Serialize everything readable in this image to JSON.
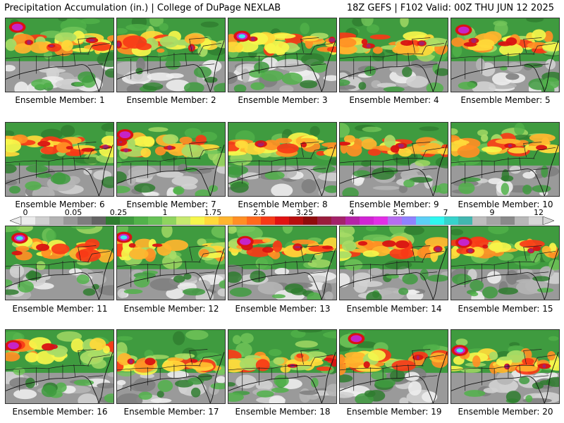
{
  "header": {
    "left": "Precipitation Accumulation (in.) | College of DuPage NEXLAB",
    "right": "18Z GEFS | F102 Valid: 00Z THU JUN 12 2025"
  },
  "colors": {
    "scale": [
      "#ececec",
      "#cfcfcf",
      "#b3b3b3",
      "#989898",
      "#7e7e7e",
      "#646464",
      "#2f7d2f",
      "#3f9b3f",
      "#51b24a",
      "#67c257",
      "#8fd45f",
      "#c6e96f",
      "#f6f64b",
      "#ffd93a",
      "#ffb52e",
      "#ff8f24",
      "#ff6a1c",
      "#f73a17",
      "#e01212",
      "#b80d0d",
      "#8f0b0b",
      "#9a1c3c",
      "#a4226a",
      "#b622a7",
      "#d124d4",
      "#e22ee6",
      "#b66ef0",
      "#8f82ff",
      "#5ccff6",
      "#2ef7f0",
      "#36d3cc",
      "#42b7b1",
      "#bdbdbd",
      "#a4a4a4",
      "#8a8a8a",
      "#b7b7b7",
      "#d7d7d7"
    ],
    "boundary": "#222222"
  },
  "colorbar": {
    "ticks": [
      "0",
      "0.05",
      "0.25",
      "1",
      "1.75",
      "2.5",
      "3.25",
      "4",
      "5.5",
      "7",
      "9",
      "12"
    ]
  },
  "members": [
    {
      "label": "Ensemble Member: 1"
    },
    {
      "label": "Ensemble Member: 2"
    },
    {
      "label": "Ensemble Member: 3"
    },
    {
      "label": "Ensemble Member: 4"
    },
    {
      "label": "Ensemble Member: 5"
    },
    {
      "label": "Ensemble Member: 6"
    },
    {
      "label": "Ensemble Member: 7"
    },
    {
      "label": "Ensemble Member: 8"
    },
    {
      "label": "Ensemble Member: 9"
    },
    {
      "label": "Ensemble Member: 10"
    },
    {
      "label": "Ensemble Member: 11"
    },
    {
      "label": "Ensemble Member: 12"
    },
    {
      "label": "Ensemble Member: 13"
    },
    {
      "label": "Ensemble Member: 14"
    },
    {
      "label": "Ensemble Member: 15"
    },
    {
      "label": "Ensemble Member: 16"
    },
    {
      "label": "Ensemble Member: 17"
    },
    {
      "label": "Ensemble Member: 18"
    },
    {
      "label": "Ensemble Member: 19"
    },
    {
      "label": "Ensemble Member: 20"
    }
  ]
}
